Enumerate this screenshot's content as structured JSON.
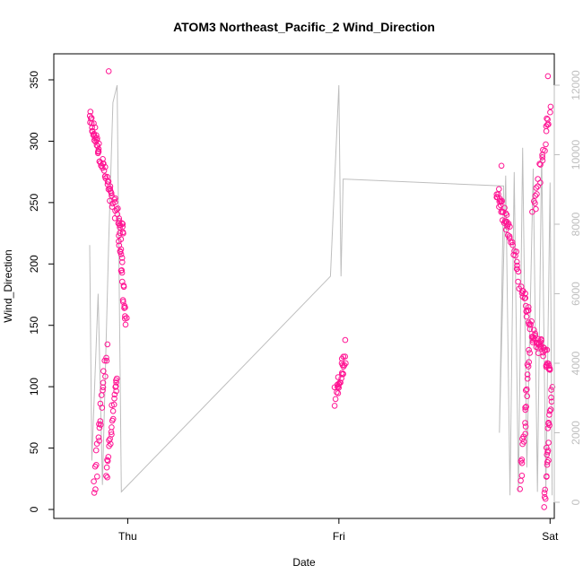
{
  "chart_data": {
    "type": "scatter",
    "title": "ATOM3 Northeast_Pacific_2 Wind_Direction",
    "xlabel": "Date",
    "ylabel": "Wind_Direction",
    "x_ticks": [
      "Thu",
      "Fri",
      "Sat"
    ],
    "x_tick_days": [
      1,
      2,
      3
    ],
    "xlim_days": [
      0.65,
      3.02
    ],
    "ylim": [
      0,
      350
    ],
    "y_ticks": [
      0,
      50,
      100,
      150,
      200,
      250,
      300,
      350
    ],
    "y2lim": [
      0,
      12000
    ],
    "y2_ticks": [
      0,
      2000,
      4000,
      6000,
      8000,
      10000,
      12000
    ],
    "colors": {
      "points": "#ff1493",
      "line": "#bebebe",
      "axis": "#000000",
      "axis2": "#bebebe"
    },
    "grid": false,
    "series": [
      {
        "kind": "points",
        "segments": [
          {
            "t": [
              0.82,
              0.86
            ],
            "y": [
              318,
              295
            ]
          },
          {
            "t": [
              0.86,
              0.92
            ],
            "y": [
              295,
              255
            ]
          },
          {
            "t": [
              0.92,
              0.98
            ],
            "y": [
              255,
              225
            ]
          },
          {
            "t": [
              0.96,
              0.99
            ],
            "y": [
              230,
              150
            ]
          },
          {
            "t": [
              0.84,
              0.9
            ],
            "y": [
              15,
              130
            ]
          },
          {
            "t": [
              0.9,
              0.95
            ],
            "y": [
              30,
              110
            ]
          },
          {
            "t": [
              1.98,
              2.03
            ],
            "y": [
              90,
              125
            ]
          },
          {
            "t": [
              2.75,
              2.8
            ],
            "y": [
              260,
              230
            ]
          },
          {
            "t": [
              2.8,
              2.88
            ],
            "y": [
              230,
              170
            ]
          },
          {
            "t": [
              2.88,
              2.94
            ],
            "y": [
              170,
              130
            ]
          },
          {
            "t": [
              2.94,
              3.0
            ],
            "y": [
              140,
              115
            ]
          },
          {
            "t": [
              2.86,
              2.9
            ],
            "y": [
              20,
              130
            ]
          },
          {
            "t": [
              2.92,
              3.0
            ],
            "y": [
              240,
              330
            ]
          },
          {
            "t": [
              2.97,
              3.01
            ],
            "y": [
              5,
              100
            ]
          }
        ],
        "outliers": [
          [
            0.91,
            357
          ],
          [
            2.03,
            138
          ],
          [
            2.99,
            353
          ],
          [
            2.77,
            280
          ]
        ]
      },
      {
        "kind": "line",
        "axis": "right",
        "points": [
          [
            0.82,
            7400
          ],
          [
            0.83,
            1200
          ],
          [
            0.86,
            6000
          ],
          [
            0.88,
            500
          ],
          [
            0.91,
            7500
          ],
          [
            0.93,
            11500
          ],
          [
            0.95,
            12000
          ],
          [
            0.97,
            300
          ],
          [
            1.96,
            6500
          ],
          [
            2.0,
            12000
          ],
          [
            2.01,
            6500
          ],
          [
            2.02,
            9300
          ],
          [
            2.78,
            9100
          ],
          [
            2.76,
            2000
          ],
          [
            2.79,
            9400
          ],
          [
            2.81,
            200
          ],
          [
            2.83,
            9500
          ],
          [
            2.85,
            300
          ],
          [
            2.87,
            10200
          ],
          [
            2.89,
            1000
          ],
          [
            2.92,
            9600
          ],
          [
            2.94,
            300
          ],
          [
            2.96,
            10100
          ],
          [
            2.98,
            300
          ],
          [
            3.0,
            9200
          ],
          [
            3.01,
            200
          ]
        ]
      }
    ]
  }
}
